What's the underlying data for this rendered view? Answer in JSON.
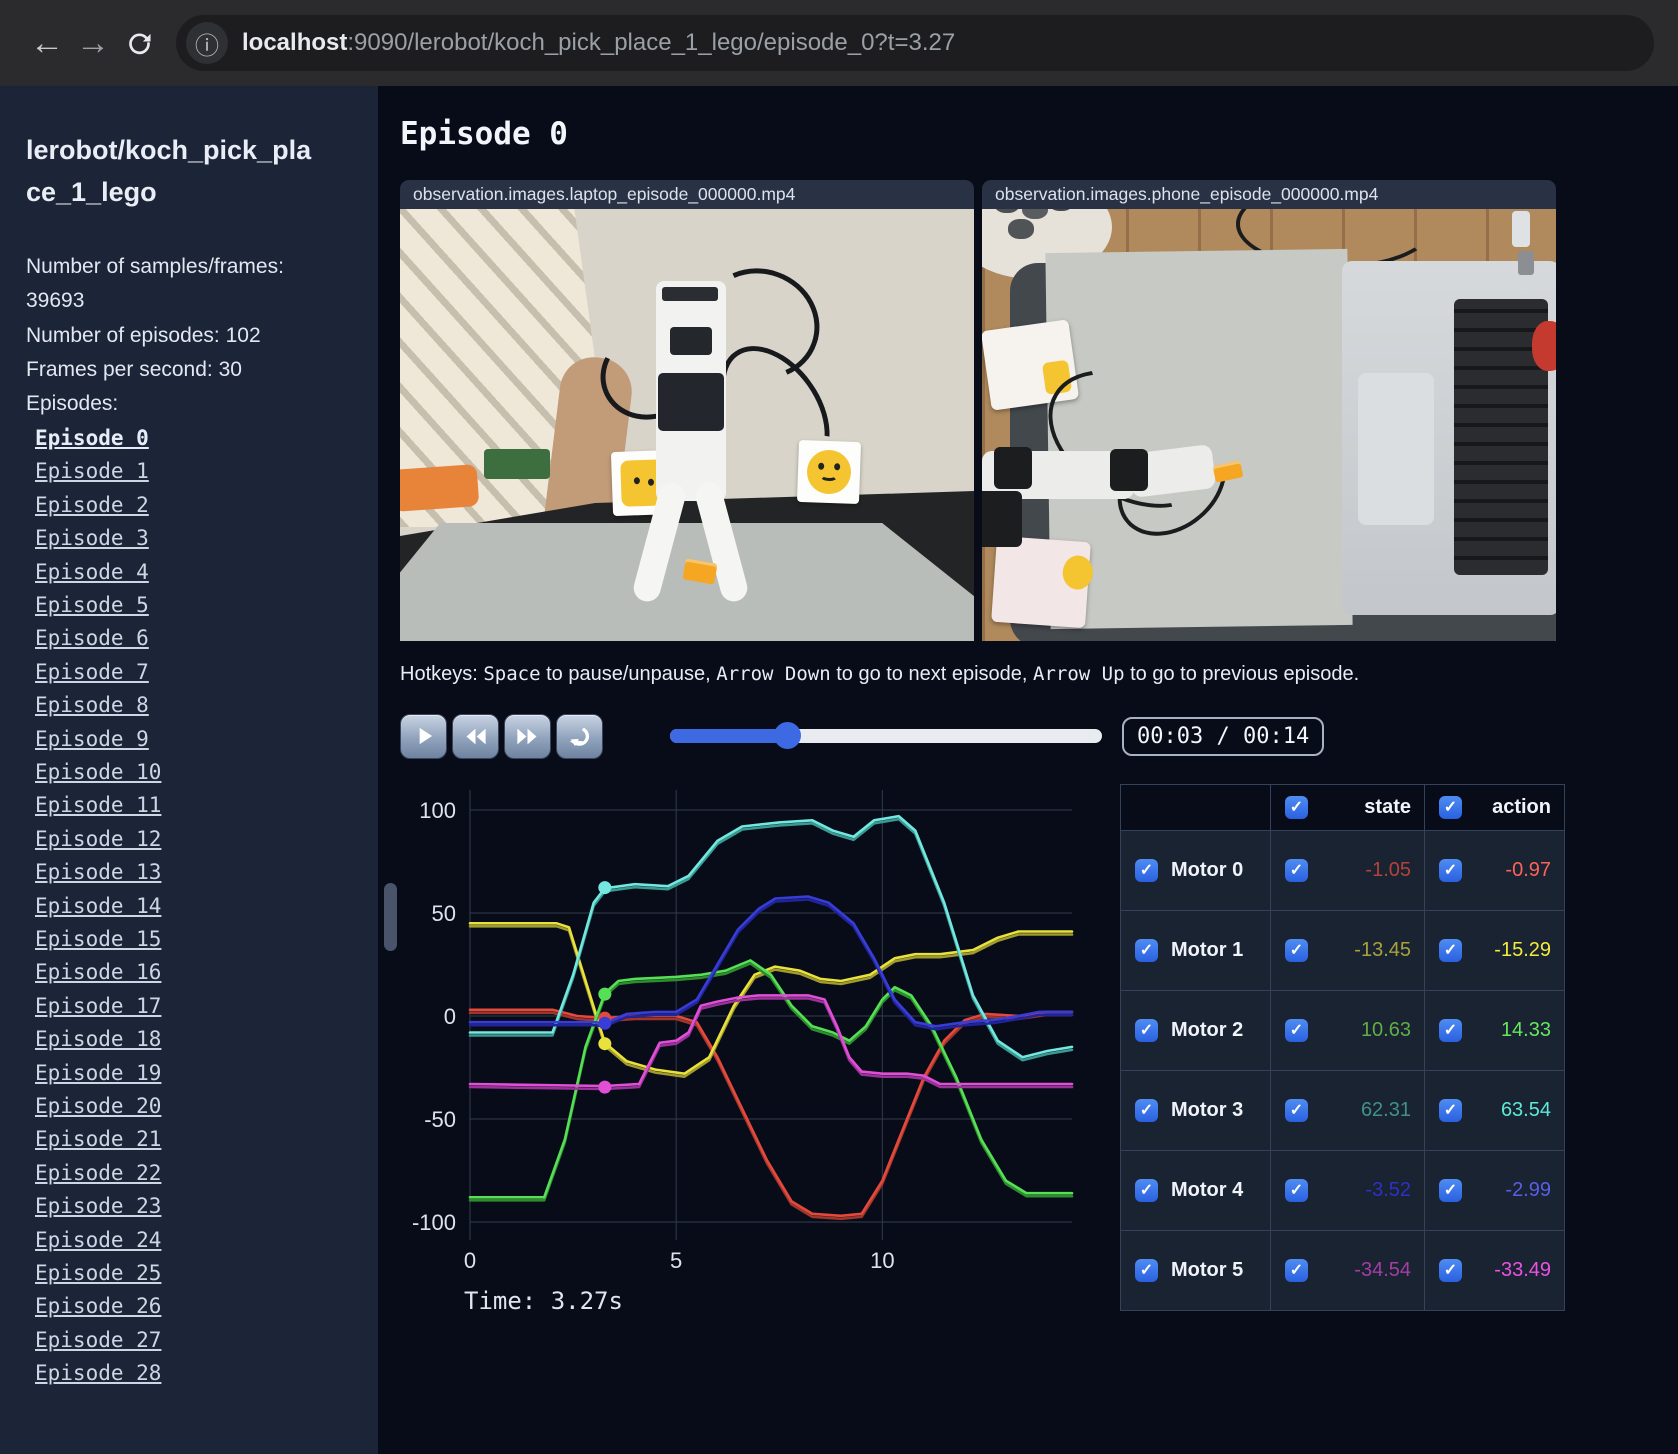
{
  "browser": {
    "url_host": "localhost",
    "url_path": ":9090/lerobot/koch_pick_place_1_lego/episode_0?t=3.27"
  },
  "sidebar": {
    "title": "lerobot/koch_pick_place_1_lego",
    "info": {
      "samples": "Number of samples/frames: 39693",
      "episodes_count": "Number of episodes: 102",
      "fps": "Frames per second: 30",
      "episodes_heading": "Episodes:"
    },
    "active_episode": "Episode 0",
    "episodes": [
      "Episode 0",
      "Episode 1",
      "Episode 2",
      "Episode 3",
      "Episode 4",
      "Episode 5",
      "Episode 6",
      "Episode 7",
      "Episode 8",
      "Episode 9",
      "Episode 10",
      "Episode 11",
      "Episode 12",
      "Episode 13",
      "Episode 14",
      "Episode 15",
      "Episode 16",
      "Episode 17",
      "Episode 18",
      "Episode 19",
      "Episode 20",
      "Episode 21",
      "Episode 22",
      "Episode 23",
      "Episode 24",
      "Episode 25",
      "Episode 26",
      "Episode 27",
      "Episode 28"
    ]
  },
  "main": {
    "title": "Episode 0",
    "videos": [
      {
        "label": "observation.images.laptop_episode_000000.mp4"
      },
      {
        "label": "observation.images.phone_episode_000000.mp4"
      }
    ],
    "hotkeys": [
      {
        "text": "Hotkeys: ",
        "mono": false
      },
      {
        "text": "Space",
        "mono": true
      },
      {
        "text": " to pause/unpause, ",
        "mono": false
      },
      {
        "text": "Arrow Down",
        "mono": true
      },
      {
        "text": " to go to next episode, ",
        "mono": false
      },
      {
        "text": "Arrow Up",
        "mono": true
      },
      {
        "text": " to go to previous episode.",
        "mono": false
      }
    ],
    "player": {
      "time_display": "00:03 / 00:14",
      "progress_pct": 27
    },
    "time_label": "Time: 3.27s"
  },
  "chart_data": {
    "type": "line",
    "title": "",
    "xlabel": "",
    "ylabel": "",
    "x_ticks": [
      0,
      5,
      10
    ],
    "y_ticks": [
      100,
      50,
      0,
      -50,
      -100
    ],
    "xlim": [
      0,
      14.6
    ],
    "ylim": [
      -110,
      108
    ],
    "grid": true,
    "legend_position": "none",
    "current_time": 3.27,
    "series": [
      {
        "name": "Motor 0",
        "state_color": "#9e362d",
        "action_color": "#e5493c",
        "marker_value": -1.05,
        "points": [
          [
            0,
            3
          ],
          [
            2,
            3
          ],
          [
            2.6,
            0
          ],
          [
            3.27,
            -1
          ],
          [
            4,
            0
          ],
          [
            5,
            0
          ],
          [
            5.5,
            -3
          ],
          [
            6,
            -20
          ],
          [
            6.6,
            -45
          ],
          [
            7.2,
            -70
          ],
          [
            7.8,
            -90
          ],
          [
            8.3,
            -96
          ],
          [
            9,
            -97
          ],
          [
            9.5,
            -96
          ],
          [
            10,
            -80
          ],
          [
            10.5,
            -55
          ],
          [
            11,
            -30
          ],
          [
            11.5,
            -12
          ],
          [
            12,
            -2
          ],
          [
            12.5,
            1
          ],
          [
            13.3,
            0
          ],
          [
            14,
            2
          ],
          [
            14.6,
            2
          ]
        ]
      },
      {
        "name": "Motor 1",
        "state_color": "#a09b2e",
        "action_color": "#e9e23c",
        "marker_value": -13.45,
        "points": [
          [
            0,
            45
          ],
          [
            2.1,
            45
          ],
          [
            2.4,
            43
          ],
          [
            3.27,
            -13
          ],
          [
            3.8,
            -22
          ],
          [
            4.5,
            -26
          ],
          [
            5.2,
            -28
          ],
          [
            5.8,
            -20
          ],
          [
            6.4,
            5
          ],
          [
            6.9,
            20
          ],
          [
            7.4,
            24
          ],
          [
            8,
            22
          ],
          [
            8.5,
            18
          ],
          [
            9,
            17
          ],
          [
            9.7,
            20
          ],
          [
            10.3,
            28
          ],
          [
            10.8,
            30
          ],
          [
            11.4,
            30
          ],
          [
            12.2,
            32
          ],
          [
            12.8,
            38
          ],
          [
            13.3,
            41
          ],
          [
            14.6,
            41
          ]
        ]
      },
      {
        "name": "Motor 2",
        "state_color": "#2e8b2e",
        "action_color": "#55e055",
        "marker_value": 10.63,
        "points": [
          [
            0,
            -88
          ],
          [
            1.8,
            -88
          ],
          [
            2.3,
            -60
          ],
          [
            2.8,
            -15
          ],
          [
            3.27,
            11
          ],
          [
            3.6,
            17
          ],
          [
            4,
            18
          ],
          [
            5,
            19
          ],
          [
            5.6,
            20
          ],
          [
            6.2,
            22
          ],
          [
            6.8,
            27
          ],
          [
            7.3,
            20
          ],
          [
            7.8,
            5
          ],
          [
            8.3,
            -5
          ],
          [
            8.8,
            -8
          ],
          [
            9.2,
            -12
          ],
          [
            9.6,
            -5
          ],
          [
            10,
            8
          ],
          [
            10.3,
            14
          ],
          [
            10.7,
            10
          ],
          [
            11.2,
            -5
          ],
          [
            11.8,
            -30
          ],
          [
            12.4,
            -60
          ],
          [
            13,
            -80
          ],
          [
            13.5,
            -86
          ],
          [
            14.6,
            -86
          ]
        ]
      },
      {
        "name": "Motor 3",
        "state_color": "#3a9a92",
        "action_color": "#72e8e0",
        "marker_value": 62.31,
        "points": [
          [
            0,
            -8
          ],
          [
            2,
            -8
          ],
          [
            2.5,
            20
          ],
          [
            3,
            55
          ],
          [
            3.27,
            62
          ],
          [
            4,
            64
          ],
          [
            4.8,
            63
          ],
          [
            5.3,
            68
          ],
          [
            6,
            85
          ],
          [
            6.6,
            92
          ],
          [
            7.5,
            94
          ],
          [
            8.3,
            95
          ],
          [
            8.8,
            90
          ],
          [
            9.3,
            87
          ],
          [
            9.8,
            95
          ],
          [
            10.4,
            97
          ],
          [
            10.8,
            90
          ],
          [
            11.5,
            55
          ],
          [
            12.2,
            10
          ],
          [
            12.8,
            -12
          ],
          [
            13.4,
            -20
          ],
          [
            14,
            -17
          ],
          [
            14.6,
            -15
          ]
        ]
      },
      {
        "name": "Motor 4",
        "state_color": "#21249a",
        "action_color": "#383dd8",
        "marker_value": -3.52,
        "points": [
          [
            0,
            -3
          ],
          [
            3,
            -3
          ],
          [
            3.27,
            -3.5
          ],
          [
            3.8,
            1
          ],
          [
            4.5,
            2
          ],
          [
            5,
            2
          ],
          [
            5.5,
            8
          ],
          [
            6,
            25
          ],
          [
            6.5,
            42
          ],
          [
            7,
            52
          ],
          [
            7.4,
            57
          ],
          [
            8.2,
            58
          ],
          [
            8.7,
            55
          ],
          [
            9.3,
            45
          ],
          [
            9.8,
            28
          ],
          [
            10.3,
            8
          ],
          [
            10.8,
            -3
          ],
          [
            11.3,
            -5
          ],
          [
            12,
            -3
          ],
          [
            12.7,
            -2
          ],
          [
            13.3,
            0
          ],
          [
            13.8,
            2
          ],
          [
            14.6,
            2
          ]
        ]
      },
      {
        "name": "Motor 5",
        "state_color": "#993399",
        "action_color": "#e14fd6",
        "marker_value": -34.54,
        "points": [
          [
            0,
            -33
          ],
          [
            3.27,
            -34
          ],
          [
            4.1,
            -33
          ],
          [
            4.3,
            -25
          ],
          [
            4.6,
            -13
          ],
          [
            5,
            -12
          ],
          [
            5.3,
            -8
          ],
          [
            5.6,
            5
          ],
          [
            6,
            7
          ],
          [
            6.5,
            9
          ],
          [
            7,
            10
          ],
          [
            7.6,
            10
          ],
          [
            8.2,
            10
          ],
          [
            8.6,
            8
          ],
          [
            8.9,
            -5
          ],
          [
            9.2,
            -20
          ],
          [
            9.5,
            -27
          ],
          [
            10,
            -28
          ],
          [
            10.6,
            -28
          ],
          [
            11,
            -29
          ],
          [
            11.4,
            -33
          ],
          [
            12,
            -33
          ],
          [
            14.6,
            -33
          ]
        ]
      }
    ]
  },
  "table": {
    "columns": [
      "state",
      "action"
    ],
    "rows": [
      {
        "label": "Motor 0",
        "state": "-1.05",
        "action": "-0.97",
        "state_color": "#b4423a",
        "action_color": "#ff6259"
      },
      {
        "label": "Motor 1",
        "state": "-13.45",
        "action": "-15.29",
        "state_color": "#a9a23b",
        "action_color": "#f2eb3e"
      },
      {
        "label": "Motor 2",
        "state": "10.63",
        "action": "14.33",
        "state_color": "#5fae46",
        "action_color": "#67e75e"
      },
      {
        "label": "Motor 3",
        "state": "62.31",
        "action": "63.54",
        "state_color": "#40918a",
        "action_color": "#5bead6"
      },
      {
        "label": "Motor 4",
        "state": "-3.52",
        "action": "-2.99",
        "state_color": "#2d31c4",
        "action_color": "#585ee8"
      },
      {
        "label": "Motor 5",
        "state": "-34.54",
        "action": "-33.49",
        "state_color": "#a43da4",
        "action_color": "#ea52e2"
      }
    ]
  }
}
